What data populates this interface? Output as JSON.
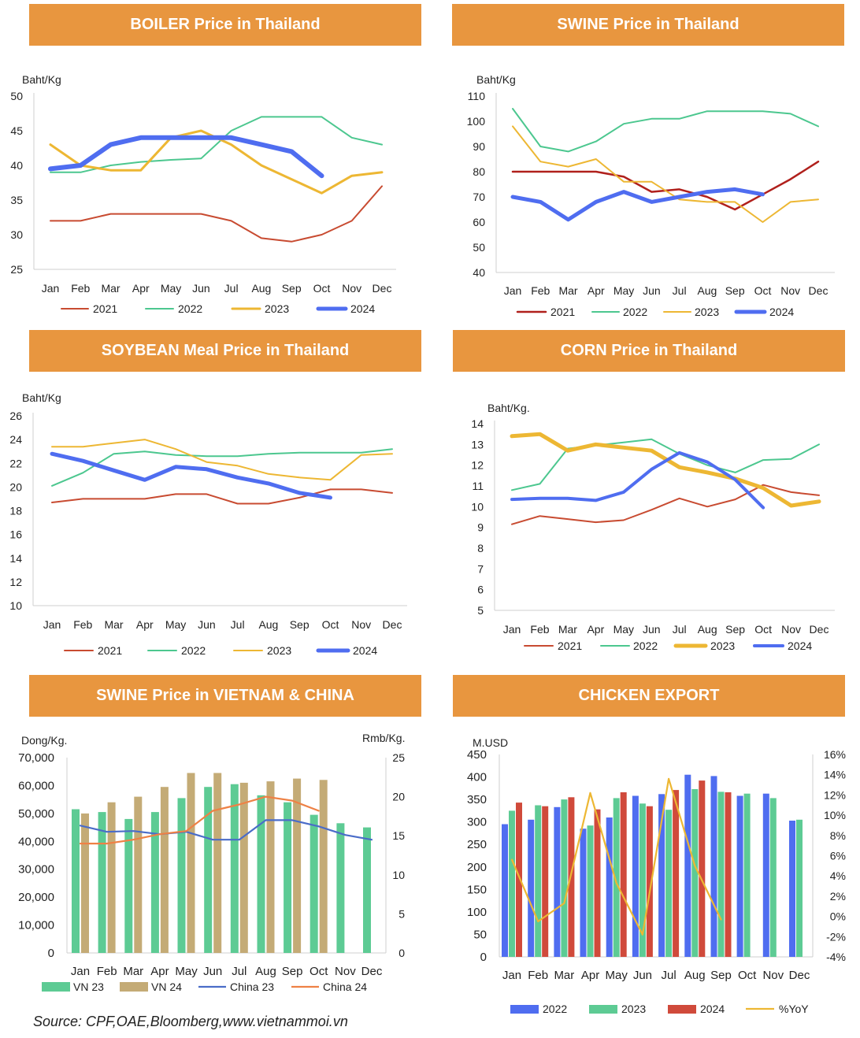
{
  "banners": {
    "boiler": "BOILER Price in Thailand",
    "swine_th": "SWINE Price in Thailand",
    "soybean": "SOYBEAN Meal Price in Thailand",
    "corn": "CORN Price in Thailand",
    "swine_vn_cn": "SWINE Price in VIETNAM & CHINA",
    "chicken": "CHICKEN EXPORT"
  },
  "source": "Source: CPF,OAE,Bloomberg,www.vietnammoi.vn",
  "chart_data": [
    {
      "id": "boiler",
      "type": "line",
      "ylabel": "Baht/Kg",
      "ylim": [
        25,
        50
      ],
      "yticks": [
        25,
        30,
        35,
        40,
        45,
        50
      ],
      "categories": [
        "Jan",
        "Feb",
        "Mar",
        "Apr",
        "May",
        "Jun",
        "Jul",
        "Aug",
        "Sep",
        "Oct",
        "Nov",
        "Dec"
      ],
      "legend_placement": "bottom",
      "series": [
        {
          "name": "2021",
          "color": "#C84B31",
          "width": 2,
          "values": [
            32,
            32,
            33,
            33,
            33,
            33,
            32,
            29.5,
            29,
            30,
            32,
            37
          ]
        },
        {
          "name": "2022",
          "color": "#4CC78F",
          "width": 2,
          "values": [
            39,
            39,
            40,
            40.5,
            40.8,
            41,
            45,
            47,
            47,
            47,
            44,
            43
          ]
        },
        {
          "name": "2023",
          "color": "#EDB733",
          "width": 3,
          "values": [
            43,
            40,
            39.3,
            39.3,
            44,
            45,
            43,
            40,
            38,
            36,
            38.5,
            39
          ]
        },
        {
          "name": "2024",
          "color": "#4F6DF0",
          "width": 6,
          "values": [
            39.5,
            40,
            43,
            44,
            44,
            44,
            44,
            43,
            42,
            38.5,
            null,
            null
          ]
        }
      ]
    },
    {
      "id": "swine_th",
      "type": "line",
      "ylabel": "Baht/Kg",
      "ylim": [
        40,
        110
      ],
      "yticks": [
        40,
        50,
        60,
        70,
        80,
        90,
        100,
        110
      ],
      "categories": [
        "Jan",
        "Feb",
        "Mar",
        "Apr",
        "May",
        "Jun",
        "Jul",
        "Aug",
        "Sep",
        "Oct",
        "Nov",
        "Dec"
      ],
      "legend_placement": "bottom",
      "series": [
        {
          "name": "2021",
          "color": "#B0201C",
          "width": 2.5,
          "values": [
            80,
            80,
            80,
            80,
            78,
            72,
            73,
            70,
            65,
            71,
            77,
            84
          ]
        },
        {
          "name": "2022",
          "color": "#4CC78F",
          "width": 2,
          "values": [
            105,
            90,
            88,
            92,
            99,
            101,
            101,
            104,
            104,
            104,
            103,
            98
          ]
        },
        {
          "name": "2023",
          "color": "#EDB733",
          "width": 2,
          "values": [
            98,
            84,
            82,
            85,
            76,
            76,
            69,
            68,
            68,
            60,
            68,
            69
          ]
        },
        {
          "name": "2024",
          "color": "#4F6DF0",
          "width": 5,
          "values": [
            70,
            68,
            61,
            68,
            72,
            68,
            70,
            72,
            73,
            71,
            null,
            null
          ]
        }
      ]
    },
    {
      "id": "soybean",
      "type": "line",
      "ylabel": "Baht/Kg",
      "ylim": [
        10,
        26
      ],
      "yticks": [
        10,
        12,
        14,
        16,
        18,
        20,
        22,
        24,
        26
      ],
      "categories": [
        "Jan",
        "Feb",
        "Mar",
        "Apr",
        "May",
        "Jun",
        "Jul",
        "Aug",
        "Sep",
        "Oct",
        "Nov",
        "Dec"
      ],
      "legend_placement": "bottom",
      "series": [
        {
          "name": "2021",
          "color": "#C84B31",
          "width": 2,
          "values": [
            18.7,
            19,
            19,
            19,
            19.4,
            19.4,
            18.6,
            18.6,
            19.1,
            19.8,
            19.8,
            19.5
          ]
        },
        {
          "name": "2022",
          "color": "#4CC78F",
          "width": 2,
          "values": [
            20.1,
            21.2,
            22.8,
            23,
            22.7,
            22.6,
            22.6,
            22.8,
            22.9,
            22.9,
            22.9,
            23.2
          ]
        },
        {
          "name": "2023",
          "color": "#EDB733",
          "width": 2,
          "values": [
            23.4,
            23.4,
            23.7,
            24,
            23.2,
            22.1,
            21.8,
            21.1,
            20.8,
            20.6,
            22.7,
            22.8
          ]
        },
        {
          "name": "2024",
          "color": "#4F6DF0",
          "width": 5,
          "values": [
            22.8,
            22.2,
            21.4,
            20.6,
            21.7,
            21.5,
            20.8,
            20.3,
            19.5,
            19.1,
            null,
            null
          ]
        }
      ]
    },
    {
      "id": "corn",
      "type": "line",
      "ylabel": "Baht/Kg.",
      "ylim": [
        5,
        14
      ],
      "yticks": [
        5,
        6,
        7,
        8,
        9,
        10,
        11,
        12,
        13,
        14
      ],
      "categories": [
        "Jan",
        "Feb",
        "Mar",
        "Apr",
        "May",
        "Jun",
        "Jul",
        "Aug",
        "Sep",
        "Oct",
        "Nov",
        "Dec"
      ],
      "legend_placement": "bottom",
      "series": [
        {
          "name": "2021",
          "color": "#C84B31",
          "width": 2,
          "values": [
            9.15,
            9.55,
            9.4,
            9.25,
            9.35,
            9.85,
            10.4,
            10,
            10.35,
            11.05,
            10.7,
            10.55
          ]
        },
        {
          "name": "2022",
          "color": "#4CC78F",
          "width": 2,
          "values": [
            10.8,
            11.1,
            12.8,
            12.95,
            13.1,
            13.25,
            12.55,
            12,
            11.65,
            12.25,
            12.3,
            13
          ]
        },
        {
          "name": "2023",
          "color": "#EDB733",
          "width": 5,
          "values": [
            13.4,
            13.5,
            12.7,
            13,
            12.85,
            12.7,
            11.9,
            11.65,
            11.35,
            10.9,
            10.05,
            10.25
          ]
        },
        {
          "name": "2024",
          "color": "#4F6DF0",
          "width": 4,
          "values": [
            10.35,
            10.4,
            10.4,
            10.3,
            10.7,
            11.8,
            12.6,
            12.15,
            11.3,
            9.95,
            null,
            null
          ]
        }
      ]
    },
    {
      "id": "swine_vn_cn",
      "type": "bar",
      "ylabel": "Dong/Kg.",
      "y2label": "Rmb/Kg.",
      "ylim": [
        0,
        70000
      ],
      "y2lim": [
        0,
        25
      ],
      "yticks": [
        "0",
        "10,000",
        "20,000",
        "30,000",
        "40,000",
        "50,000",
        "60,000",
        "70,000"
      ],
      "y2ticks": [
        "0",
        "5",
        "10",
        "15",
        "20",
        "25"
      ],
      "categories": [
        "Jan",
        "Feb",
        "Mar",
        "Apr",
        "May",
        "Jun",
        "Jul",
        "Aug",
        "Sep",
        "Oct",
        "Nov",
        "Dec"
      ],
      "legend_placement": "bottom",
      "series": [
        {
          "name": "VN 23",
          "kind": "bar",
          "axis": "left",
          "color": "#5DCB94",
          "values": [
            51500,
            50500,
            48000,
            50500,
            55500,
            59500,
            60500,
            56500,
            54000,
            49500,
            46500,
            45000
          ]
        },
        {
          "name": "VN 24",
          "kind": "bar",
          "axis": "left",
          "color": "#C4AB76",
          "values": [
            50000,
            54000,
            56000,
            59500,
            64500,
            64500,
            61000,
            61500,
            62500,
            62000,
            null,
            null
          ]
        },
        {
          "name": "China 23",
          "kind": "line",
          "axis": "right",
          "color": "#4A6CC8",
          "values": [
            16.3,
            15.5,
            15.6,
            15.2,
            15.5,
            14.5,
            14.5,
            17,
            17,
            16.2,
            15.1,
            14.5
          ]
        },
        {
          "name": "China 24",
          "kind": "line",
          "axis": "right",
          "color": "#EE8145",
          "values": [
            14,
            14,
            14.5,
            15.2,
            15.6,
            18.2,
            19,
            20,
            19.5,
            18.2,
            null,
            null
          ]
        }
      ]
    },
    {
      "id": "chicken",
      "type": "bar",
      "ylabel": "M.USD",
      "ylim": [
        0,
        450
      ],
      "y2lim": [
        -4,
        16
      ],
      "yticks": [
        "0",
        "50",
        "100",
        "150",
        "200",
        "250",
        "300",
        "350",
        "400",
        "450"
      ],
      "y2ticks": [
        "-4%",
        "-2%",
        "0%",
        "2%",
        "4%",
        "6%",
        "8%",
        "10%",
        "12%",
        "14%",
        "16%"
      ],
      "categories": [
        "Jan",
        "Feb",
        "Mar",
        "Apr",
        "May",
        "Jun",
        "Jul",
        "Aug",
        "Sep",
        "Oct",
        "Nov",
        "Dec"
      ],
      "legend_placement": "bottom",
      "series": [
        {
          "name": "2022",
          "kind": "bar",
          "axis": "left",
          "color": "#4F6DF0",
          "values": [
            295,
            305,
            333,
            285,
            310,
            358,
            362,
            405,
            402,
            358,
            363,
            303
          ]
        },
        {
          "name": "2023",
          "kind": "bar",
          "axis": "left",
          "color": "#5DCB94",
          "values": [
            325,
            337,
            350,
            292,
            353,
            341,
            327,
            373,
            367,
            363,
            353,
            305
          ]
        },
        {
          "name": "2024",
          "kind": "bar",
          "axis": "left",
          "color": "#D04A3B",
          "values": [
            343,
            335,
            355,
            328,
            366,
            335,
            371,
            392,
            366,
            null,
            null,
            null
          ]
        },
        {
          "name": "%YoY",
          "kind": "line",
          "axis": "right",
          "color": "#EDB733",
          "values": [
            5.6,
            -0.5,
            1.3,
            12.2,
            3.3,
            -1.8,
            13.6,
            5,
            -0.3,
            null,
            null,
            null
          ]
        }
      ]
    }
  ]
}
